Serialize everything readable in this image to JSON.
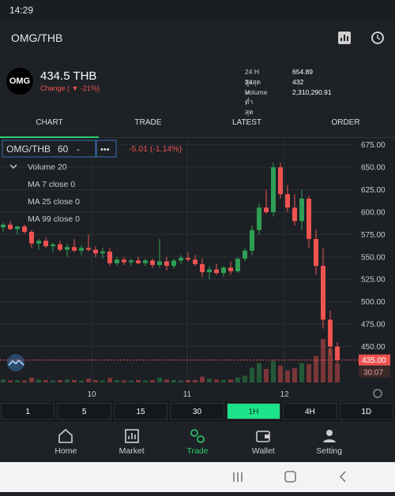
{
  "status": {
    "time": "14:29"
  },
  "header": {
    "title": "OMG/THB"
  },
  "summary": {
    "logo": "OMG",
    "price": "434.5 THB",
    "change": "Change ( ▼ -21%)",
    "stats": [
      {
        "label": "24 H สูงสุด :",
        "value": "654.89"
      },
      {
        "label": "24 H ต่ำสุด :",
        "value": "432"
      },
      {
        "label": "Volume :",
        "value": "2,310,290.91"
      }
    ]
  },
  "tabs": [
    "CHART",
    "TRADE",
    "LATEST",
    "ORDER"
  ],
  "active_tab": 0,
  "chart": {
    "type": "candlestick",
    "symbol": "OMG/THB",
    "interval": "60",
    "dash": "-",
    "more": "•••",
    "change": "-5.01 (-1.14%)",
    "indicators": [
      "Volume 20",
      "MA 7 close 0",
      "MA 25 close 0",
      "MA 99 close 0"
    ],
    "ylim": [
      410,
      680
    ],
    "yticks": [
      {
        "value": 675,
        "label": "675.00"
      },
      {
        "value": 650,
        "label": "650.00"
      },
      {
        "value": 625,
        "label": "625.00"
      },
      {
        "value": 600,
        "label": "600.00"
      },
      {
        "value": 575,
        "label": "575.00"
      },
      {
        "value": 550,
        "label": "550.00"
      },
      {
        "value": 525,
        "label": "525.00"
      },
      {
        "value": 500,
        "label": "500.00"
      },
      {
        "value": 475,
        "label": "475.00"
      },
      {
        "value": 450,
        "label": "450.00"
      }
    ],
    "last_price": {
      "value": 435,
      "label": "435.00"
    },
    "countdown": "30:07",
    "x_labels": [
      "10",
      "11",
      "12"
    ],
    "up_color": "#2f9e55",
    "down_color": "#ef5350",
    "candles": [
      [
        583,
        588,
        578,
        586
      ],
      [
        586,
        590,
        580,
        581
      ],
      [
        581,
        585,
        575,
        584
      ],
      [
        584,
        586,
        576,
        578
      ],
      [
        578,
        580,
        560,
        565
      ],
      [
        565,
        570,
        558,
        568
      ],
      [
        568,
        572,
        560,
        562
      ],
      [
        562,
        566,
        555,
        564
      ],
      [
        564,
        568,
        556,
        558
      ],
      [
        558,
        565,
        550,
        561
      ],
      [
        561,
        570,
        555,
        557
      ],
      [
        557,
        563,
        552,
        560
      ],
      [
        560,
        575,
        556,
        558
      ],
      [
        558,
        562,
        550,
        554
      ],
      [
        554,
        560,
        548,
        556
      ],
      [
        556,
        560,
        540,
        543
      ],
      [
        543,
        550,
        540,
        547
      ],
      [
        547,
        550,
        541,
        544
      ],
      [
        544,
        548,
        540,
        546
      ],
      [
        546,
        550,
        542,
        543
      ],
      [
        543,
        548,
        540,
        546
      ],
      [
        546,
        548,
        538,
        541
      ],
      [
        541,
        570,
        538,
        545
      ],
      [
        545,
        550,
        535,
        540
      ],
      [
        540,
        548,
        537,
        546
      ],
      [
        546,
        552,
        542,
        549
      ],
      [
        549,
        555,
        545,
        547
      ],
      [
        547,
        552,
        540,
        542
      ],
      [
        542,
        548,
        528,
        533
      ],
      [
        533,
        540,
        525,
        536
      ],
      [
        536,
        542,
        530,
        532
      ],
      [
        532,
        540,
        528,
        538
      ],
      [
        538,
        545,
        530,
        534
      ],
      [
        534,
        550,
        532,
        548
      ],
      [
        548,
        560,
        545,
        557
      ],
      [
        557,
        585,
        552,
        580
      ],
      [
        580,
        610,
        575,
        605
      ],
      [
        605,
        625,
        598,
        600
      ],
      [
        600,
        655,
        595,
        650
      ],
      [
        650,
        655,
        615,
        620
      ],
      [
        620,
        630,
        600,
        605
      ],
      [
        605,
        620,
        585,
        590
      ],
      [
        590,
        625,
        580,
        615
      ],
      [
        615,
        618,
        560,
        570
      ],
      [
        570,
        580,
        530,
        540
      ],
      [
        540,
        560,
        470,
        480
      ],
      [
        480,
        490,
        440,
        450
      ],
      [
        450,
        455,
        432,
        435
      ]
    ],
    "volumes": [
      6,
      4,
      5,
      4,
      10,
      6,
      5,
      4,
      5,
      6,
      5,
      4,
      8,
      5,
      4,
      9,
      5,
      4,
      4,
      5,
      4,
      5,
      10,
      6,
      5,
      4,
      5,
      5,
      12,
      8,
      6,
      5,
      6,
      10,
      14,
      30,
      40,
      28,
      45,
      35,
      25,
      30,
      40,
      38,
      55,
      90,
      70,
      40
    ]
  },
  "intervals": [
    "1",
    "5",
    "15",
    "30",
    "1H",
    "4H",
    "1D"
  ],
  "active_interval": 4,
  "nav": [
    "Home",
    "Market",
    "Trade",
    "Wallet",
    "Setting"
  ],
  "active_nav": 2
}
